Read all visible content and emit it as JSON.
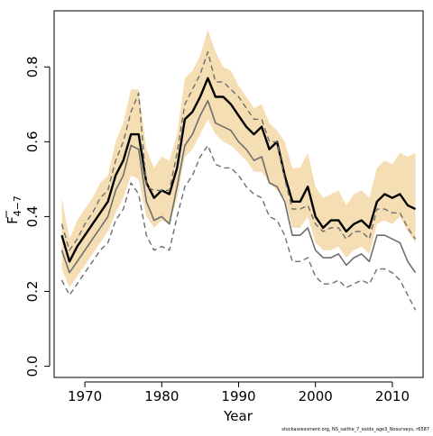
{
  "chart_data": {
    "type": "line",
    "title": "",
    "xlabel": "Year",
    "ylabel_main": "F",
    "ylabel_sub": "4−7",
    "xlim": [
      1966,
      2014
    ],
    "ylim": [
      -0.03,
      0.95
    ],
    "x_ticks": [
      1970,
      1980,
      1990,
      2000,
      2010
    ],
    "x_tick_labels": [
      "1970",
      "1980",
      "1990",
      "2000",
      "2010"
    ],
    "y_ticks": [
      0.0,
      0.2,
      0.4,
      0.6,
      0.8
    ],
    "y_tick_labels": [
      "0.0",
      "0.2",
      "0.4",
      "0.6",
      "0.8"
    ],
    "grid": false,
    "legend": "none",
    "source_note": "stockassessment.org, NS_saithe_7_exidx_age3_Nosurveys, r6587",
    "colors": {
      "band": "#f5deb3",
      "main_line": "#000000",
      "grey_line": "#6e6e6e",
      "dashed_line": "#6e6e6e"
    },
    "x": [
      1967,
      1968,
      1969,
      1970,
      1971,
      1972,
      1973,
      1974,
      1975,
      1976,
      1977,
      1978,
      1979,
      1980,
      1981,
      1982,
      1983,
      1984,
      1985,
      1986,
      1987,
      1988,
      1989,
      1990,
      1991,
      1992,
      1993,
      1994,
      1995,
      1996,
      1997,
      1998,
      1999,
      2000,
      2001,
      2002,
      2003,
      2004,
      2005,
      2006,
      2007,
      2008,
      2009,
      2010,
      2011,
      2012,
      2013
    ],
    "series": [
      {
        "style": "band",
        "upper": [
          0.45,
          0.34,
          0.39,
          0.42,
          0.45,
          0.49,
          0.51,
          0.6,
          0.65,
          0.74,
          0.74,
          0.58,
          0.53,
          0.56,
          0.55,
          0.62,
          0.77,
          0.79,
          0.83,
          0.9,
          0.84,
          0.8,
          0.79,
          0.75,
          0.72,
          0.69,
          0.7,
          0.65,
          0.63,
          0.6,
          0.53,
          0.53,
          0.57,
          0.48,
          0.45,
          0.46,
          0.47,
          0.43,
          0.46,
          0.47,
          0.45,
          0.53,
          0.55,
          0.54,
          0.57,
          0.56,
          0.57
        ],
        "lower": [
          0.26,
          0.21,
          0.24,
          0.27,
          0.3,
          0.33,
          0.36,
          0.41,
          0.45,
          0.51,
          0.5,
          0.4,
          0.37,
          0.39,
          0.38,
          0.45,
          0.56,
          0.58,
          0.62,
          0.66,
          0.62,
          0.6,
          0.59,
          0.57,
          0.55,
          0.52,
          0.52,
          0.49,
          0.47,
          0.45,
          0.37,
          0.37,
          0.4,
          0.33,
          0.31,
          0.31,
          0.32,
          0.29,
          0.31,
          0.32,
          0.3,
          0.38,
          0.39,
          0.38,
          0.4,
          0.36,
          0.33
        ]
      },
      {
        "style": "solid-black",
        "values": [
          0.35,
          0.28,
          0.32,
          0.35,
          0.38,
          0.41,
          0.44,
          0.51,
          0.55,
          0.62,
          0.62,
          0.49,
          0.45,
          0.47,
          0.46,
          0.53,
          0.66,
          0.68,
          0.72,
          0.77,
          0.72,
          0.72,
          0.7,
          0.67,
          0.64,
          0.62,
          0.64,
          0.58,
          0.6,
          0.51,
          0.44,
          0.44,
          0.48,
          0.4,
          0.37,
          0.39,
          0.39,
          0.36,
          0.38,
          0.39,
          0.37,
          0.44,
          0.46,
          0.45,
          0.46,
          0.43,
          0.42
        ]
      },
      {
        "style": "solid-grey",
        "values": [
          0.31,
          0.25,
          0.28,
          0.31,
          0.34,
          0.37,
          0.4,
          0.47,
          0.51,
          0.59,
          0.58,
          0.44,
          0.39,
          0.4,
          0.38,
          0.48,
          0.59,
          0.62,
          0.67,
          0.71,
          0.65,
          0.64,
          0.63,
          0.6,
          0.58,
          0.55,
          0.56,
          0.49,
          0.48,
          0.44,
          0.35,
          0.35,
          0.37,
          0.31,
          0.29,
          0.29,
          0.3,
          0.27,
          0.29,
          0.3,
          0.28,
          0.35,
          0.35,
          0.34,
          0.33,
          0.28,
          0.25
        ]
      },
      {
        "style": "dashed-upper",
        "values": [
          0.38,
          0.31,
          0.34,
          0.38,
          0.41,
          0.45,
          0.47,
          0.55,
          0.6,
          0.68,
          0.73,
          0.48,
          0.47,
          0.47,
          0.47,
          0.57,
          0.7,
          0.74,
          0.78,
          0.84,
          0.76,
          0.76,
          0.74,
          0.72,
          0.69,
          0.66,
          0.66,
          0.6,
          0.6,
          0.5,
          0.42,
          0.42,
          0.43,
          0.38,
          0.36,
          0.37,
          0.37,
          0.34,
          0.36,
          0.36,
          0.34,
          0.42,
          0.42,
          0.41,
          0.41,
          0.37,
          0.34
        ]
      },
      {
        "style": "dashed-lower",
        "values": [
          0.23,
          0.19,
          0.22,
          0.25,
          0.28,
          0.31,
          0.33,
          0.39,
          0.42,
          0.49,
          0.46,
          0.35,
          0.31,
          0.32,
          0.31,
          0.4,
          0.48,
          0.51,
          0.56,
          0.59,
          0.54,
          0.53,
          0.53,
          0.51,
          0.48,
          0.46,
          0.45,
          0.4,
          0.39,
          0.35,
          0.28,
          0.28,
          0.29,
          0.24,
          0.22,
          0.22,
          0.23,
          0.21,
          0.22,
          0.23,
          0.22,
          0.26,
          0.26,
          0.25,
          0.23,
          0.19,
          0.15
        ]
      }
    ]
  }
}
